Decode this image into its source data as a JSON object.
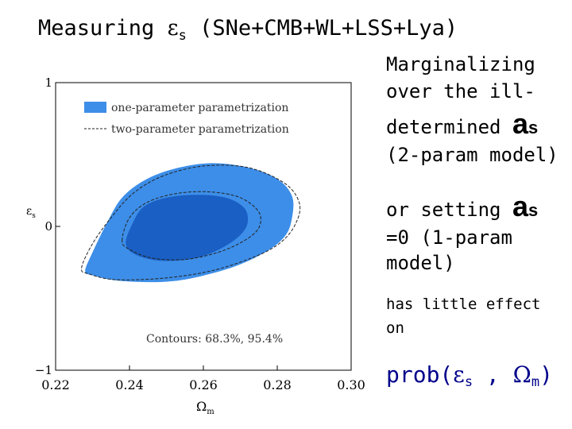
{
  "slide": {
    "title_prefix": "Measuring ",
    "title_symbol": "ε",
    "title_symbol_sub": "s",
    "title_suffix": " (SNe+CMB+WL+LSS+Lya)",
    "text_line1": "Marginalizing",
    "text_line2": "over the ill-",
    "text_line3": "determined",
    "text_alpha": "a",
    "text_alpha_sub": "s",
    "text_line4": "(2-param model)",
    "text_line5": "or setting",
    "text_line6": "=0 (1-param",
    "text_line7": "model)",
    "text_line8": "has little effect",
    "text_line9": "on",
    "prob_prefix": "prob(",
    "prob_eps": "ε",
    "prob_eps_sub": "s",
    "prob_sep": " , ",
    "prob_omega": "Ω",
    "prob_omega_sub": "m",
    "prob_suffix": ")"
  },
  "chart_data": {
    "type": "contour",
    "xlabel": "Ω",
    "xlabel_sub": "m",
    "ylabel": "ε",
    "ylabel_sub": "s",
    "xlim": [
      0.22,
      0.3
    ],
    "ylim": [
      -1,
      1
    ],
    "x_ticks": [
      "0.22",
      "0.24",
      "0.26",
      "0.28",
      "0.30"
    ],
    "y_ticks": [
      "1",
      "0",
      "−1"
    ],
    "legend": {
      "position": "top-left",
      "entries": [
        "one-parameter parametrization",
        "two-parameter parametrization"
      ]
    },
    "annotation": "Contours: 68.3%, 95.4%",
    "colors": {
      "outer": "#3d8ee8",
      "inner": "#1a5fc4",
      "dash": "#222222"
    },
    "series": [
      {
        "name": "one-parameter parametrization",
        "style": "filled",
        "contours": [
          {
            "level": "95.4%",
            "points": [
              [
                0.228,
                -0.31
              ],
              [
                0.23,
                -0.18
              ],
              [
                0.234,
                0.03
              ],
              [
                0.238,
                0.2
              ],
              [
                0.244,
                0.32
              ],
              [
                0.252,
                0.4
              ],
              [
                0.262,
                0.44
              ],
              [
                0.272,
                0.41
              ],
              [
                0.28,
                0.33
              ],
              [
                0.284,
                0.21
              ],
              [
                0.284,
                0.06
              ],
              [
                0.282,
                -0.07
              ],
              [
                0.276,
                -0.19
              ],
              [
                0.266,
                -0.3
              ],
              [
                0.252,
                -0.38
              ],
              [
                0.238,
                -0.38
              ],
              [
                0.23,
                -0.34
              ]
            ]
          },
          {
            "level": "68.3%",
            "points": [
              [
                0.239,
                -0.12
              ],
              [
                0.241,
                0.03
              ],
              [
                0.244,
                0.14
              ],
              [
                0.25,
                0.2
              ],
              [
                0.258,
                0.22
              ],
              [
                0.266,
                0.2
              ],
              [
                0.271,
                0.13
              ],
              [
                0.272,
                0.03
              ],
              [
                0.27,
                -0.06
              ],
              [
                0.265,
                -0.15
              ],
              [
                0.258,
                -0.22
              ],
              [
                0.249,
                -0.24
              ],
              [
                0.242,
                -0.2
              ]
            ]
          }
        ]
      },
      {
        "name": "two-parameter parametrization",
        "style": "dashed",
        "contours": [
          {
            "level": "95.4%",
            "points": [
              [
                0.227,
                -0.29
              ],
              [
                0.23,
                -0.12
              ],
              [
                0.235,
                0.06
              ],
              [
                0.241,
                0.23
              ],
              [
                0.249,
                0.35
              ],
              [
                0.26,
                0.42
              ],
              [
                0.272,
                0.41
              ],
              [
                0.282,
                0.3
              ],
              [
                0.286,
                0.16
              ],
              [
                0.285,
                0.02
              ],
              [
                0.281,
                -0.11
              ],
              [
                0.274,
                -0.21
              ],
              [
                0.262,
                -0.31
              ],
              [
                0.249,
                -0.36
              ],
              [
                0.236,
                -0.37
              ],
              [
                0.229,
                -0.33
              ]
            ]
          },
          {
            "level": "68.3%",
            "points": [
              [
                0.238,
                -0.1
              ],
              [
                0.24,
                0.06
              ],
              [
                0.245,
                0.17
              ],
              [
                0.253,
                0.23
              ],
              [
                0.262,
                0.24
              ],
              [
                0.27,
                0.2
              ],
              [
                0.275,
                0.1
              ],
              [
                0.275,
                -0.01
              ],
              [
                0.271,
                -0.1
              ],
              [
                0.264,
                -0.18
              ],
              [
                0.255,
                -0.23
              ],
              [
                0.246,
                -0.22
              ],
              [
                0.24,
                -0.16
              ]
            ]
          }
        ]
      }
    ]
  }
}
